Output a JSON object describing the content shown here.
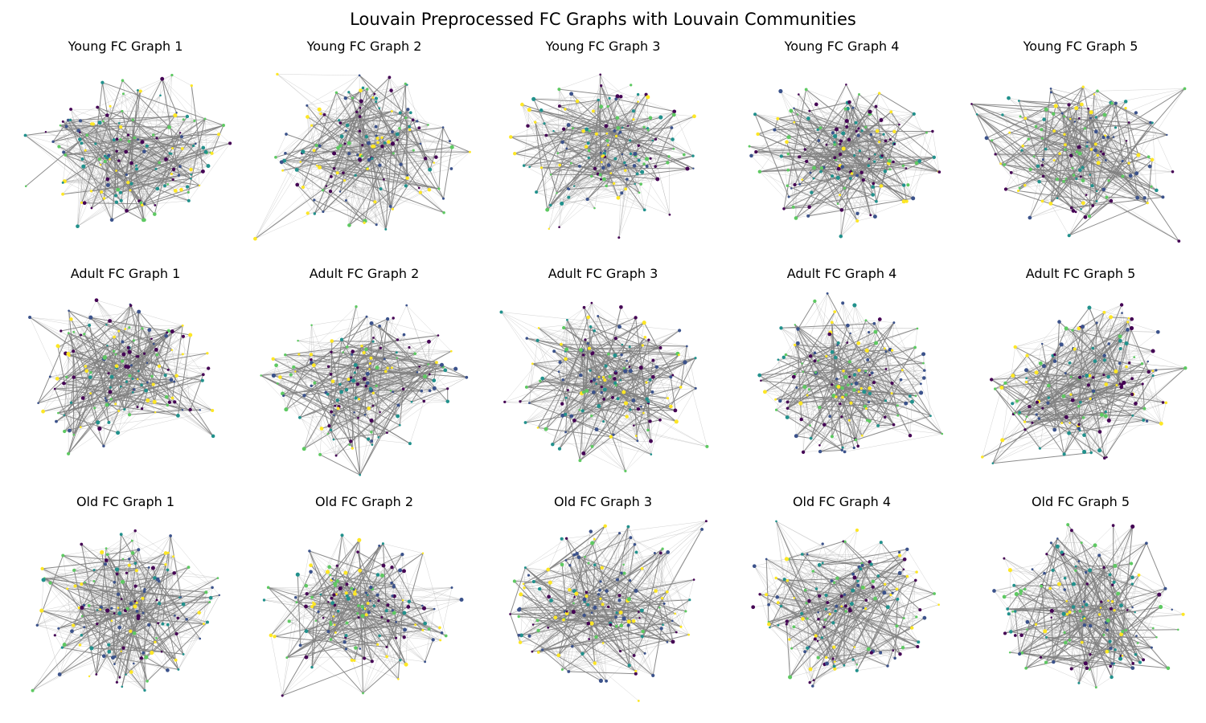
{
  "figure": {
    "title": "Louvain Preprocessed FC Graphs with Louvain Communities"
  },
  "community_colors": [
    "#440154",
    "#3b528b",
    "#21918c",
    "#5ec962",
    "#fde725"
  ],
  "edge_color": "#808080",
  "rows": [
    {
      "group": "Young",
      "panels": [
        {
          "title": "Young FC Graph 1"
        },
        {
          "title": "Young FC Graph 2"
        },
        {
          "title": "Young FC Graph 3"
        },
        {
          "title": "Young FC Graph 4"
        },
        {
          "title": "Young FC Graph 5"
        }
      ]
    },
    {
      "group": "Adult",
      "panels": [
        {
          "title": "Adult FC Graph 1"
        },
        {
          "title": "Adult FC Graph 2"
        },
        {
          "title": "Adult FC Graph 3"
        },
        {
          "title": "Adult FC Graph 4"
        },
        {
          "title": "Adult FC Graph 5"
        }
      ]
    },
    {
      "group": "Old",
      "panels": [
        {
          "title": "Old FC Graph 1"
        },
        {
          "title": "Old FC Graph 2"
        },
        {
          "title": "Old FC Graph 3"
        },
        {
          "title": "Old FC Graph 4"
        },
        {
          "title": "Old FC Graph 5"
        }
      ]
    }
  ]
}
